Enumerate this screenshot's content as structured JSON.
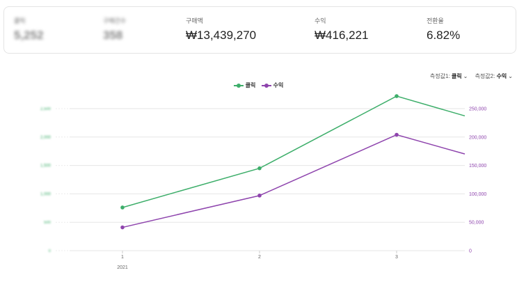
{
  "summary": {
    "clicks": {
      "label": "클릭",
      "value": "5,252"
    },
    "purchases": {
      "label": "구매건수",
      "value": "358"
    },
    "purchase_amount": {
      "label": "구매액",
      "value": "₩13,439,270"
    },
    "revenue": {
      "label": "수익",
      "value": "₩416,221"
    },
    "conversion": {
      "label": "전환율",
      "value": "6.82%"
    }
  },
  "selectors": {
    "metric1_label": "측정값1:",
    "metric1_value": "클릭",
    "metric2_label": "측정값2:",
    "metric2_value": "수익"
  },
  "chart_data": {
    "type": "line",
    "categories": [
      "1",
      "2",
      "3"
    ],
    "x_sublabel": "2021",
    "series": [
      {
        "name": "클릭",
        "axis": "left",
        "color": "#3dae6a",
        "values": [
          760,
          1450,
          2720
        ],
        "next_value_beyond_view": 2020
      },
      {
        "name": "수익",
        "axis": "right",
        "color": "#8e44ad",
        "values": [
          41000,
          97000,
          204000
        ],
        "next_value_beyond_view": 136000
      }
    ],
    "y_left": {
      "ticks": [
        "0",
        "500",
        "1,000",
        "1,500",
        "2,000",
        "2,500"
      ],
      "range": [
        0,
        2500
      ],
      "blurred": true
    },
    "y_right": {
      "ticks": [
        "0",
        "50,000",
        "100,000",
        "150,000",
        "200,000",
        "250,000"
      ],
      "range": [
        0,
        250000
      ]
    },
    "legend_position": "top",
    "grid": true
  }
}
